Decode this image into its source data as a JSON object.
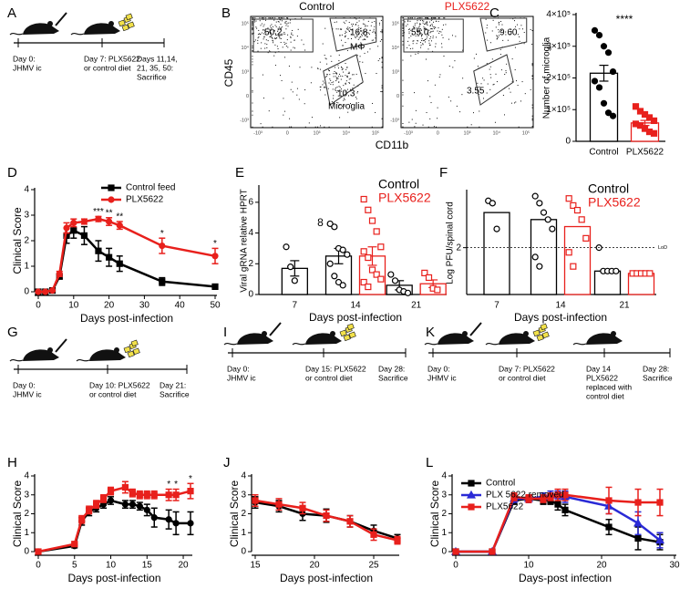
{
  "panel_labels": [
    "A",
    "B",
    "C",
    "D",
    "E",
    "F",
    "G",
    "H",
    "I",
    "J",
    "K",
    "L"
  ],
  "timelines": [
    {
      "events": [
        [
          "Day 0:",
          "JHMV ic"
        ],
        [
          "Day 7: PLX5622",
          "or control diet"
        ],
        [
          "Days 11,14,",
          "21, 35, 50:",
          "Sacrifice"
        ]
      ]
    },
    {
      "events": [
        [
          "Day 0:",
          "JHMV ic"
        ],
        [
          "Day 10: PLX5622",
          "or control diet"
        ],
        [
          "Day 21:",
          "Sacrifice"
        ]
      ]
    },
    {
      "events": [
        [
          "Day 0:",
          "JHMV ic"
        ],
        [
          "Day 15: PLX5622",
          "or control diet"
        ],
        [
          "Day 28:",
          "Sacrifice"
        ]
      ]
    },
    {
      "events": [
        [
          "Day 0:",
          "JHMV ic"
        ],
        [
          "Day 7: PLX5622",
          "or control diet"
        ],
        [
          "Day 14",
          "PLX5622",
          "replaced with",
          "control diet"
        ],
        [
          "Day 28:",
          "Sacrifice"
        ]
      ]
    }
  ],
  "flow": {
    "xlabel": "CD11b",
    "ylabel": "CD45",
    "xticks": [
      "-10³",
      "0",
      "10³",
      "10⁴",
      "10⁵"
    ],
    "yticks": [
      "-10³",
      "0",
      "10³",
      "10⁴",
      "10⁵"
    ],
    "plots": [
      {
        "title": "Control",
        "labels": [
          "50.2",
          "16.8",
          "MΦ",
          "10.3",
          "Microglia"
        ]
      },
      {
        "title": "PLX5622",
        "labels": [
          "55.0",
          "9.60",
          "3.55"
        ]
      }
    ]
  },
  "chart_data": [
    {
      "type": "bar",
      "categories": [
        "Control",
        "PLX5622"
      ],
      "values": [
        215000,
        58000
      ],
      "errors": [
        25000,
        8000
      ],
      "colors": [
        "#000000",
        "#e8201c"
      ],
      "markers": [
        "circle",
        "square"
      ],
      "marker_fill": "filled",
      "points": [
        [
          350000,
          335000,
          300000,
          280000,
          220000,
          190000,
          170000,
          120000,
          90000,
          80000
        ],
        [
          110000,
          95000,
          85000,
          75000,
          65000,
          55000,
          50000,
          40000,
          30000,
          25000
        ]
      ],
      "ylabel": "Number of microglia",
      "ylim": [
        0,
        400000
      ],
      "yticks": [
        0,
        {
          "value": 100000,
          "label": "1×10⁵"
        },
        {
          "value": 200000,
          "label": "2×10⁵"
        },
        {
          "value": 300000,
          "label": "3×10⁵"
        },
        {
          "value": 400000,
          "label": "4×10⁵"
        }
      ],
      "annotations": [
        {
          "text": "****"
        }
      ]
    },
    {
      "type": "line",
      "x": [
        0,
        2,
        4,
        6,
        8,
        10,
        13,
        17,
        20,
        23,
        35,
        50
      ],
      "xlabel": "Days post-infection",
      "ylabel": "Clinical Score",
      "xlim": [
        0,
        50
      ],
      "xticks": [
        0,
        10,
        20,
        30,
        40,
        50
      ],
      "ylim": [
        0,
        4
      ],
      "yticks": [
        0,
        1,
        2,
        3,
        4
      ],
      "legend": "upper right",
      "series": [
        {
          "name": "Control feed",
          "color": "#000000",
          "marker": "square",
          "values": [
            0,
            0,
            0.05,
            0.6,
            2.2,
            2.4,
            2.2,
            1.6,
            1.35,
            1.1,
            0.4,
            0.2
          ],
          "errors": [
            0,
            0,
            0,
            0.1,
            0.3,
            0.3,
            0.35,
            0.4,
            0.35,
            0.3,
            0.15,
            0.05
          ]
        },
        {
          "name": "PLX5622",
          "color": "#e8201c",
          "marker": "circle",
          "values": [
            0,
            0,
            0.05,
            0.7,
            2.5,
            2.7,
            2.75,
            2.85,
            2.75,
            2.6,
            1.8,
            1.4
          ],
          "errors": [
            0,
            0,
            0,
            0.1,
            0.2,
            0.15,
            0.1,
            0.1,
            0.15,
            0.15,
            0.3,
            0.3
          ]
        }
      ],
      "annotations": [
        {
          "text": "***",
          "x": 17
        },
        {
          "text": "**",
          "x": 20
        },
        {
          "text": "**",
          "x": 23
        },
        {
          "text": "*",
          "x": 35
        },
        {
          "text": "*",
          "x": 50
        }
      ]
    },
    {
      "type": "bar",
      "categories": [
        "7",
        "14",
        "21"
      ],
      "xlabel": "Days post-infection",
      "ylabel": "Viral gRNA relative HPRT",
      "ylim": [
        0,
        7
      ],
      "yticks": [
        0,
        2,
        4,
        6
      ],
      "marker_fill": "open",
      "series": [
        {
          "name": "Control",
          "color": "#000000",
          "marker": "circle",
          "values": [
            1.7,
            2.5,
            0.6
          ],
          "errors": [
            0.5,
            0.5,
            0.3
          ],
          "points": [
            [
              3.1,
              1.8,
              0.9
            ],
            [
              4.6,
              4.4,
              3.0,
              2.9,
              2.6,
              2.0,
              1.2,
              0.8,
              0.6
            ],
            [
              1.3,
              0.9,
              0.3,
              0.2,
              0.1
            ]
          ]
        },
        {
          "name": "PLX5622",
          "color": "#e8201c",
          "marker": "square",
          "values": [
            null,
            2.5,
            0.7
          ],
          "errors": [
            null,
            0.6,
            0.25
          ],
          "points": [
            [],
            [
              6.2,
              5.5,
              4.8,
              4.1,
              3.1,
              2.8,
              2.4,
              1.6,
              1.3,
              1.0,
              0.8,
              0.5
            ],
            [
              1.4,
              1.1,
              0.4,
              0.3
            ]
          ]
        }
      ],
      "annotations": [
        {
          "text": "8"
        }
      ]
    },
    {
      "type": "bar",
      "categories": [
        "7",
        "14",
        "21"
      ],
      "xlabel": "Days post-infection",
      "ylabel": "Log PFU/spinal cord",
      "ylim": [
        1,
        3.2
      ],
      "yticks": [
        2
      ],
      "marker_fill": "open",
      "lod": {
        "value": 2,
        "label": "LoD"
      },
      "series": [
        {
          "name": "Control",
          "color": "#000000",
          "marker": "circle",
          "values": [
            2.75,
            2.6,
            1.5
          ],
          "points": [
            [
              3.0,
              2.95,
              2.4
            ],
            [
              3.1,
              2.95,
              2.75,
              2.6,
              2.4,
              1.8,
              1.6
            ],
            [
              2.0,
              1.5,
              1.5,
              1.5,
              1.5
            ]
          ]
        },
        {
          "name": "PLX5622",
          "color": "#e8201c",
          "marker": "square",
          "values": [
            null,
            2.45,
            1.45
          ],
          "points": [
            [],
            [
              3.05,
              2.9,
              2.8,
              2.6,
              2.2,
              1.9,
              1.6
            ],
            [
              1.45,
              1.45,
              1.45,
              1.45,
              1.45
            ]
          ]
        }
      ]
    },
    {
      "type": "line",
      "x": [
        0,
        5,
        6,
        7,
        8,
        9,
        10,
        12,
        13,
        14,
        15,
        16,
        18,
        19,
        21
      ],
      "xlabel": "Days post-infection",
      "ylabel": "Clinical Score",
      "xlim": [
        0,
        21
      ],
      "xticks": [
        0,
        5,
        10,
        15,
        20
      ],
      "ylim": [
        0,
        4
      ],
      "yticks": [
        0,
        1,
        2,
        3,
        4
      ],
      "series": [
        {
          "color": "#000000",
          "marker": "circle",
          "values": [
            0,
            0.3,
            1.6,
            2.1,
            2.3,
            2.5,
            2.7,
            2.5,
            2.5,
            2.4,
            2.2,
            1.8,
            1.7,
            1.5,
            1.5
          ],
          "errors": [
            0,
            0.1,
            0.2,
            0.2,
            0.2,
            0.2,
            0.2,
            0.2,
            0.2,
            0.2,
            0.3,
            0.5,
            0.5,
            0.6,
            0.6
          ]
        },
        {
          "color": "#e8201c",
          "marker": "square",
          "values": [
            0,
            0.4,
            1.7,
            2.2,
            2.5,
            2.8,
            3.2,
            3.4,
            3.1,
            3.0,
            3.0,
            3.0,
            3.0,
            3.0,
            3.2
          ],
          "errors": [
            0,
            0.1,
            0.2,
            0.2,
            0.2,
            0.2,
            0.2,
            0.3,
            0.2,
            0.2,
            0.2,
            0.2,
            0.3,
            0.3,
            0.4
          ]
        }
      ],
      "annotations": [
        {
          "text": "*",
          "x": 18
        },
        {
          "text": "*",
          "x": 19
        },
        {
          "text": "*",
          "x": 21
        }
      ]
    },
    {
      "type": "line",
      "x": [
        15,
        17,
        19,
        21,
        23,
        25,
        27
      ],
      "xlabel": "Days post-infection",
      "ylabel": "Clinical Score",
      "xlim": [
        15,
        27
      ],
      "xticks": [
        15,
        20,
        25
      ],
      "ylim": [
        0,
        4
      ],
      "yticks": [
        0,
        1,
        2,
        3,
        4
      ],
      "series": [
        {
          "color": "#000000",
          "marker": "circle",
          "values": [
            2.6,
            2.4,
            2.0,
            1.9,
            1.6,
            1.1,
            0.7
          ],
          "errors": [
            0.3,
            0.3,
            0.35,
            0.35,
            0.3,
            0.3,
            0.2
          ]
        },
        {
          "color": "#e8201c",
          "marker": "square",
          "values": [
            2.7,
            2.5,
            2.3,
            1.9,
            1.6,
            0.9,
            0.6
          ],
          "errors": [
            0.3,
            0.3,
            0.3,
            0.3,
            0.3,
            0.3,
            0.2
          ]
        }
      ]
    },
    {
      "type": "line",
      "x": [
        0,
        5,
        8,
        10,
        12,
        13,
        14,
        15,
        21,
        25,
        28
      ],
      "xlabel": "Days-post infection",
      "ylabel": "Clinical Score",
      "xlim": [
        0,
        30
      ],
      "xticks": [
        0,
        10,
        20,
        30
      ],
      "ylim": [
        0,
        4
      ],
      "yticks": [
        0,
        1,
        2,
        3,
        4
      ],
      "legend": "upper left",
      "series": [
        {
          "name": "Control",
          "color": "#000000",
          "marker": "square",
          "values": [
            0,
            0,
            2.7,
            2.8,
            2.7,
            2.7,
            2.5,
            2.2,
            1.3,
            0.7,
            0.5
          ],
          "errors": [
            0,
            0,
            0.2,
            0.2,
            0.2,
            0.2,
            0.3,
            0.3,
            0.4,
            0.6,
            0.4
          ]
        },
        {
          "name": "PLX 5622 removed",
          "color": "#2a2ad6",
          "marker": "triangle",
          "values": [
            0,
            0,
            2.8,
            2.8,
            2.9,
            3.0,
            3.0,
            2.9,
            2.4,
            1.5,
            0.6
          ],
          "errors": [
            0,
            0,
            0.2,
            0.2,
            0.2,
            0.2,
            0.2,
            0.3,
            0.4,
            0.6,
            0.4
          ]
        },
        {
          "name": "PLX5622",
          "color": "#e8201c",
          "marker": "square",
          "values": [
            0,
            0,
            2.9,
            2.8,
            2.8,
            2.9,
            3.0,
            3.0,
            2.7,
            2.6,
            2.6
          ],
          "errors": [
            0,
            0,
            0.2,
            0.2,
            0.2,
            0.2,
            0.3,
            0.3,
            0.7,
            0.7,
            0.7
          ]
        }
      ]
    }
  ]
}
